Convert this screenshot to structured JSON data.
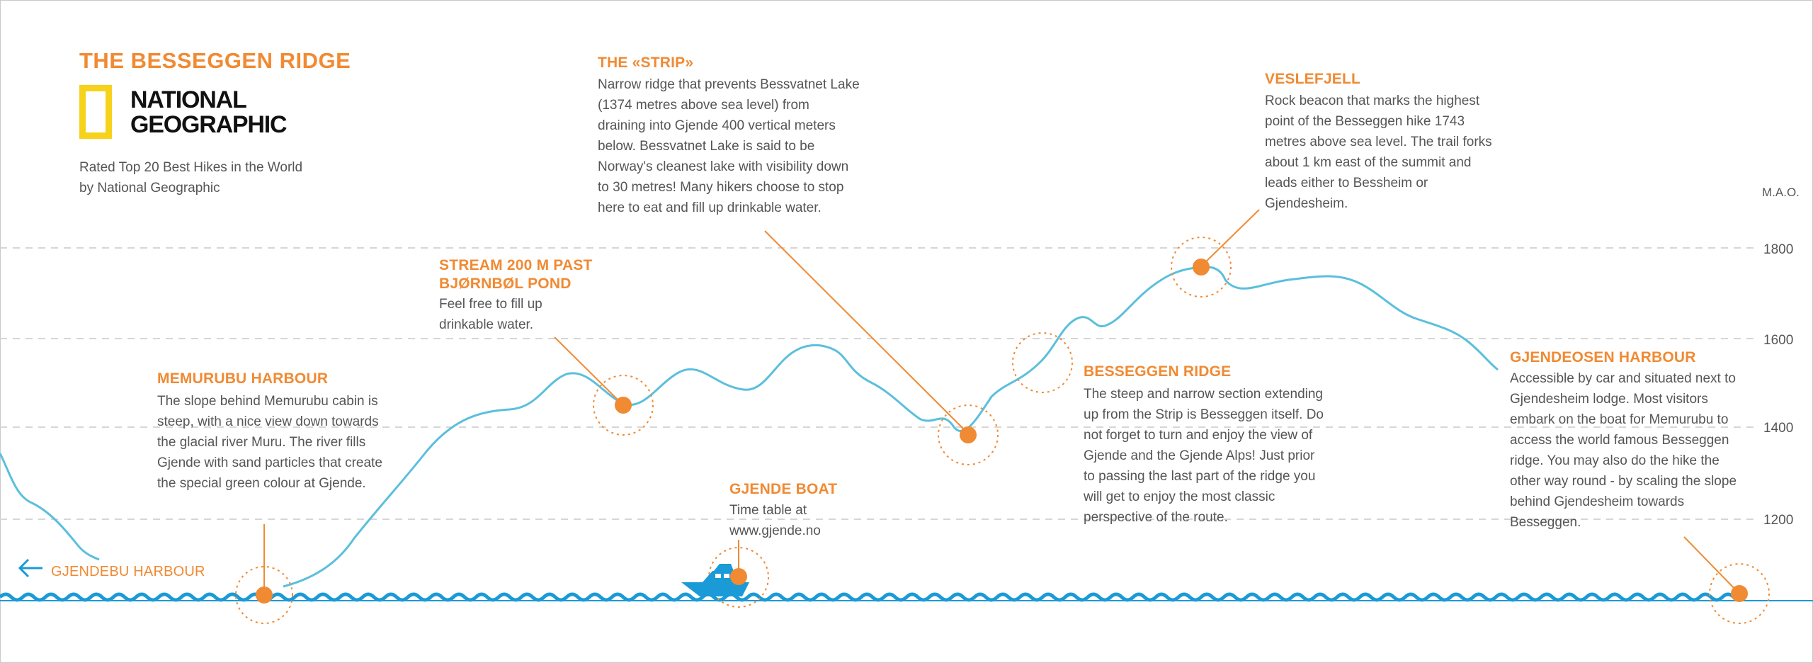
{
  "title": "THE BESSEGGEN RIDGE",
  "logo": {
    "line1": "NATIONAL",
    "line2": "GEOGRAPHIC"
  },
  "tagline": "Rated Top 20 Best Hikes in the World by National Geographic",
  "axis": {
    "unit": "M.A.O.",
    "ticks": [
      1200,
      1400,
      1600,
      1800
    ]
  },
  "start_label": "GJENDEBU HARBOUR",
  "points": {
    "memurubu": {
      "title": "MEMURUBU HARBOUR",
      "text": "The slope behind Memurubu cabin is steep, with a nice view down towards the glacial river Muru. The river fills Gjende with sand particles that create the special green colour at Gjende."
    },
    "stream": {
      "title_line1": "STREAM 200 M PAST",
      "title_line2": "BJØRNBØL POND",
      "text": "Feel free to fill up drinkable water."
    },
    "strip": {
      "title": "THE «STRIP»",
      "text": "Narrow ridge that prevents Bessvatnet Lake (1374 metres above sea level) from draining into Gjende 400 vertical meters below. Bessvatnet Lake is said to be Norway's cleanest lake with visibility down to 30 metres! Many hikers choose to stop here to eat and fill up drinkable water."
    },
    "boat": {
      "title": "GJENDE BOAT",
      "text_line1": "Time table at",
      "text_line2": "www.gjende.no"
    },
    "ridge": {
      "title": "BESSEGGEN RIDGE",
      "text": "The steep and narrow section extending up from the Strip is Besseggen itself. Do not forget to turn and enjoy the view of Gjende and the Gjende Alps! Just prior to passing the last part of the ridge  you will get to enjoy the most classic perspective of the route."
    },
    "veslefjell": {
      "title": "VESLEFJELL",
      "text": "Rock beacon that marks the highest point of the Besseggen hike 1743 metres above sea level. The trail forks about 1 km east of the summit and leads either to Bessheim or Gjendesheim."
    },
    "gjendeosen": {
      "title": "GJENDEOSEN HARBOUR",
      "text": "Accessible by car and situated next to Gjendesheim lodge. Most visitors embark on the boat for Memurubu to access the world famous Besseggen ridge. You may also do the hike the other way round - by scaling the slope behind Gjendesheim towards Besseggen."
    }
  },
  "colors": {
    "accent": "#f08a33",
    "trail": "#5bbfdc",
    "water": "#1a9ad6",
    "grid": "#d6d6d6",
    "logo_yellow": "#f7d21a"
  }
}
